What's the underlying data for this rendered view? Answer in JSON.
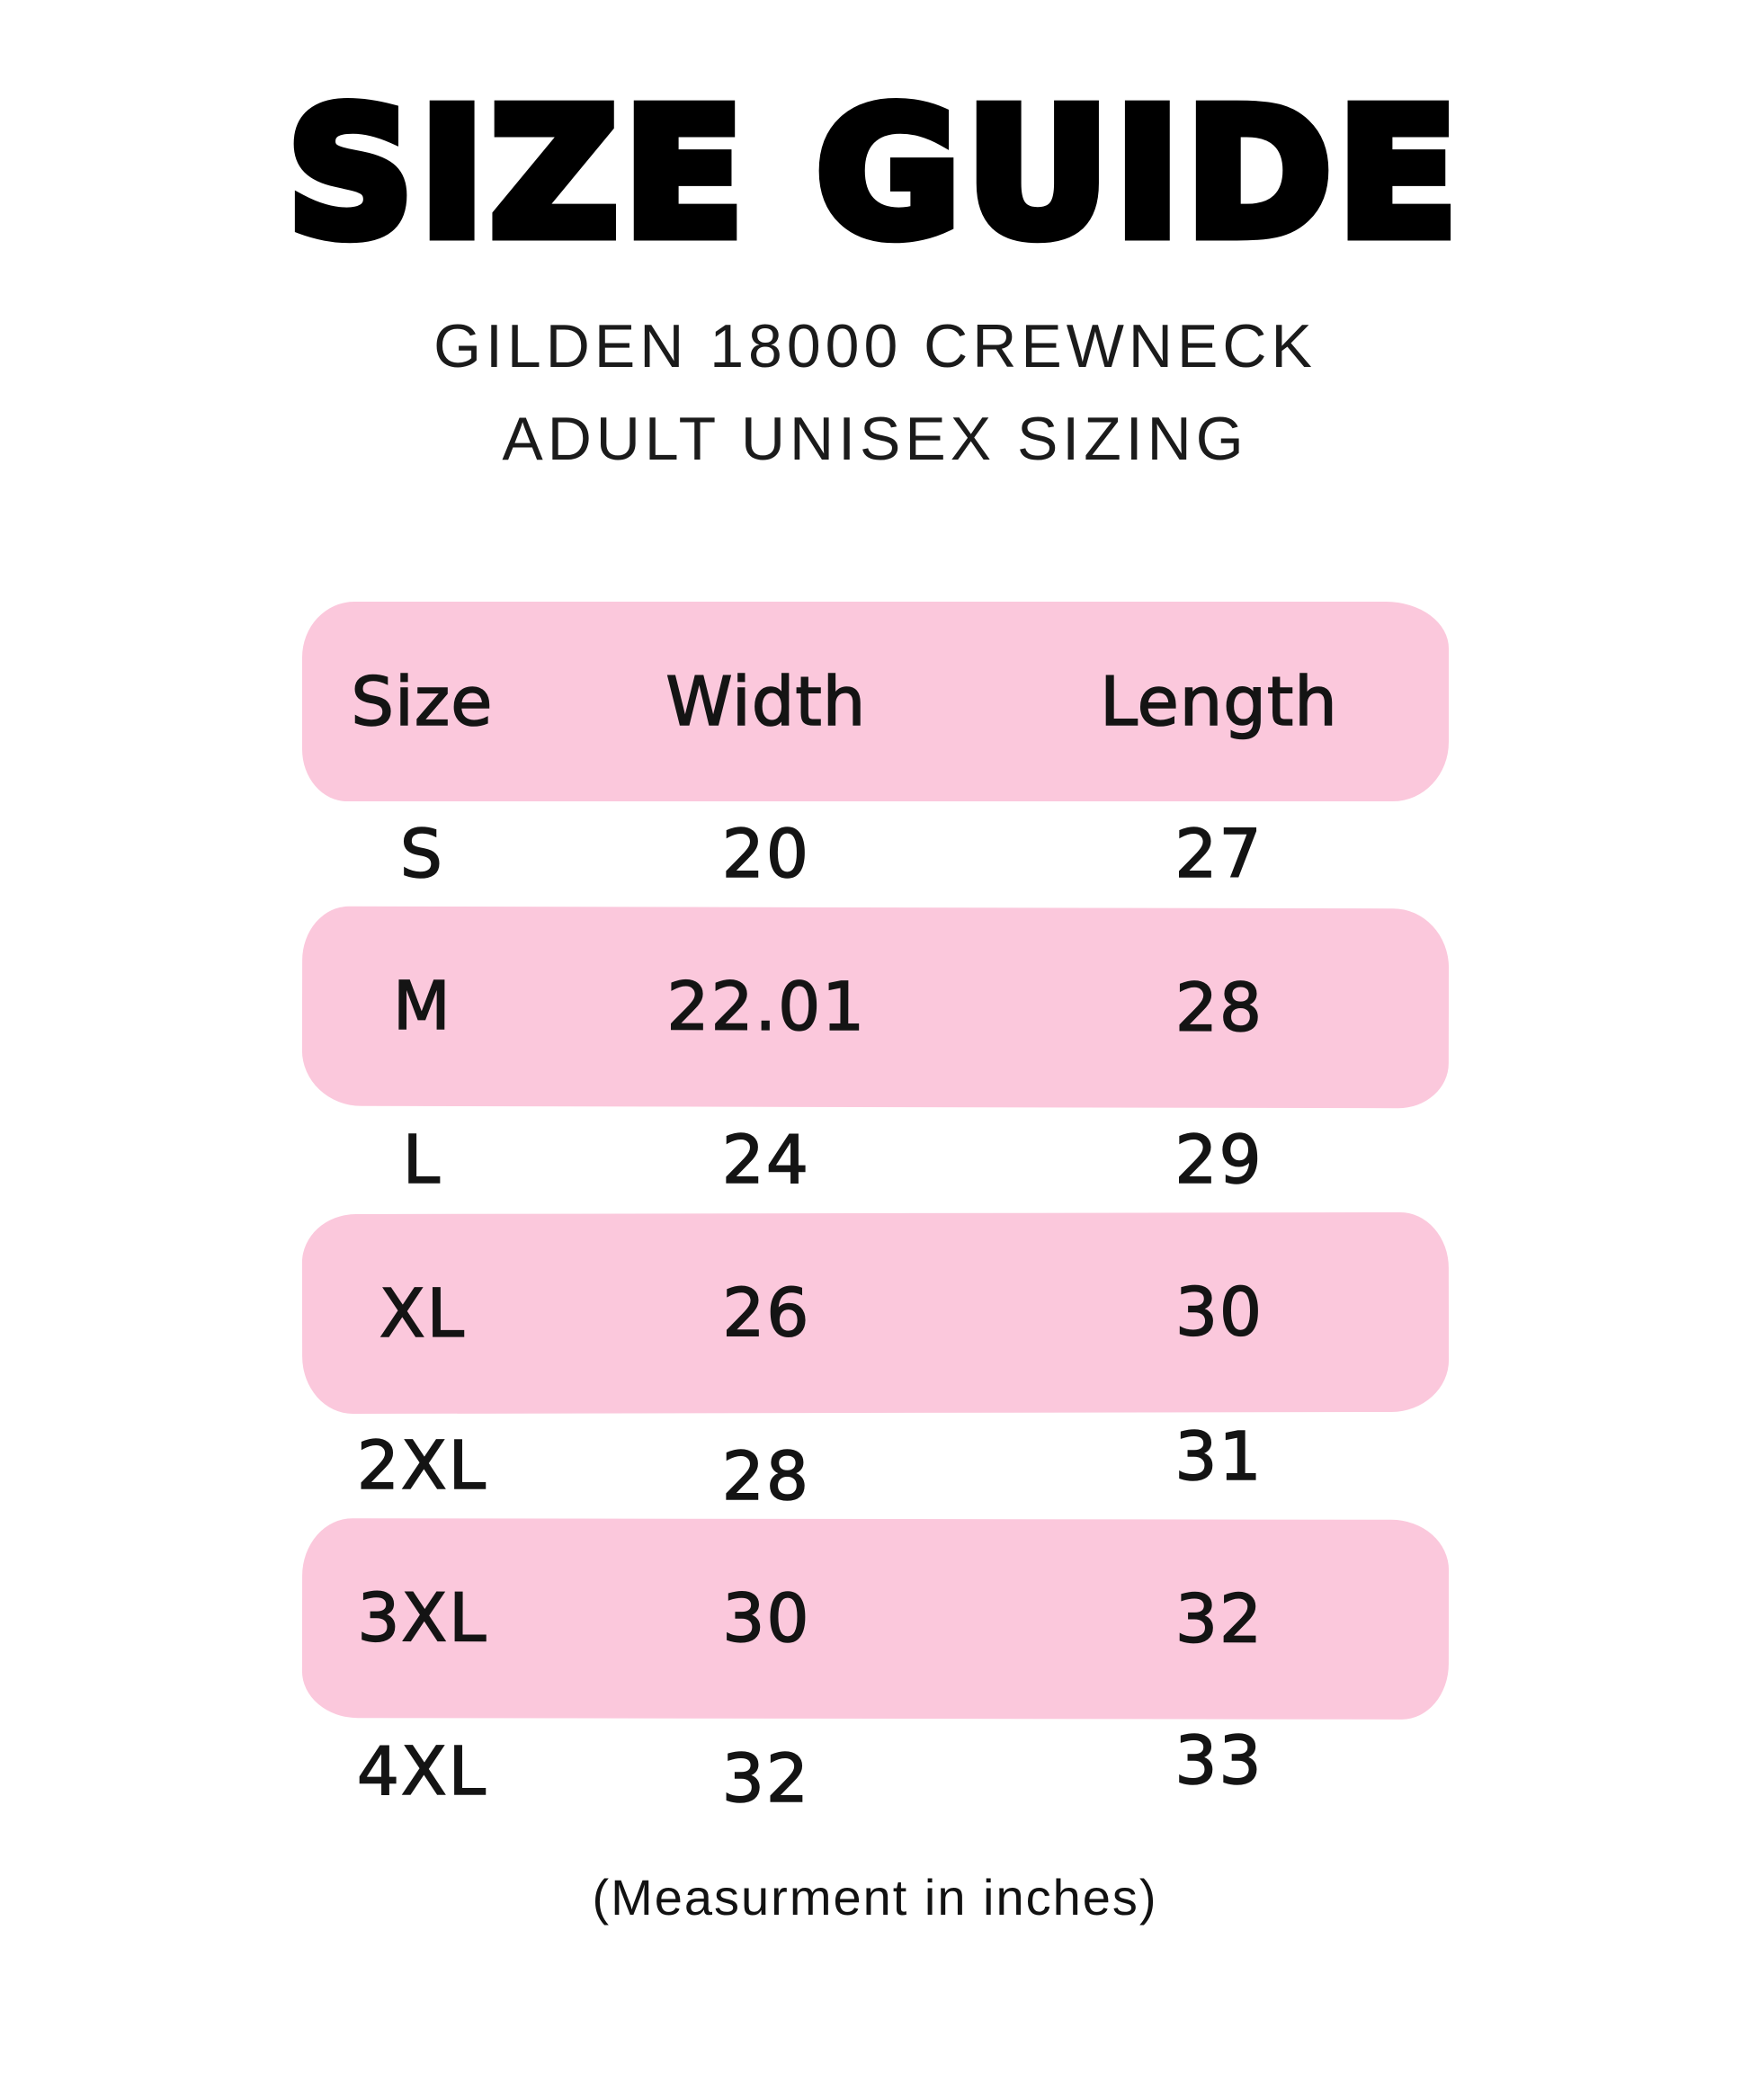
{
  "title": "SIZE GUIDE",
  "subtitle": {
    "line1": "GILDEN 18000 CREWNECK",
    "line2": "ADULT UNISEX SIZING"
  },
  "footer_note": "(Measurment in inches)",
  "colors": {
    "row_pink": "#FBC8DC",
    "text_black": "#000000",
    "page_background": "#FFFFFF"
  },
  "table": {
    "headers": [
      "Size",
      "Width",
      "Length"
    ],
    "rows": [
      {
        "size": "S",
        "width": "20",
        "length": "27"
      },
      {
        "size": "M",
        "width": "22.01",
        "length": "28"
      },
      {
        "size": "L",
        "width": "24",
        "length": "29"
      },
      {
        "size": "XL",
        "width": "26",
        "length": "30"
      },
      {
        "size": "2XL",
        "width": "28",
        "length": "31"
      },
      {
        "size": "3XL",
        "width": "30",
        "length": "32"
      },
      {
        "size": "4XL",
        "width": "32",
        "length": "33"
      }
    ]
  },
  "chart_data": {
    "type": "table",
    "title": "SIZE GUIDE",
    "subtitle": "GILDEN 18000 CREWNECK ADULT UNISEX SIZING",
    "columns": [
      "Size",
      "Width",
      "Length"
    ],
    "rows": [
      [
        "S",
        20,
        27
      ],
      [
        "M",
        22.01,
        28
      ],
      [
        "L",
        24,
        29
      ],
      [
        "XL",
        26,
        30
      ],
      [
        "2XL",
        28,
        31
      ],
      [
        "3XL",
        30,
        32
      ],
      [
        "4XL",
        32,
        33
      ]
    ],
    "units": "inches",
    "note": "(Measurment in inches)",
    "layout_hints": {
      "highlighted_rows": [
        "header",
        "M",
        "XL",
        "3XL"
      ],
      "highlight_color": "#FBC8DC",
      "grid": false
    }
  }
}
